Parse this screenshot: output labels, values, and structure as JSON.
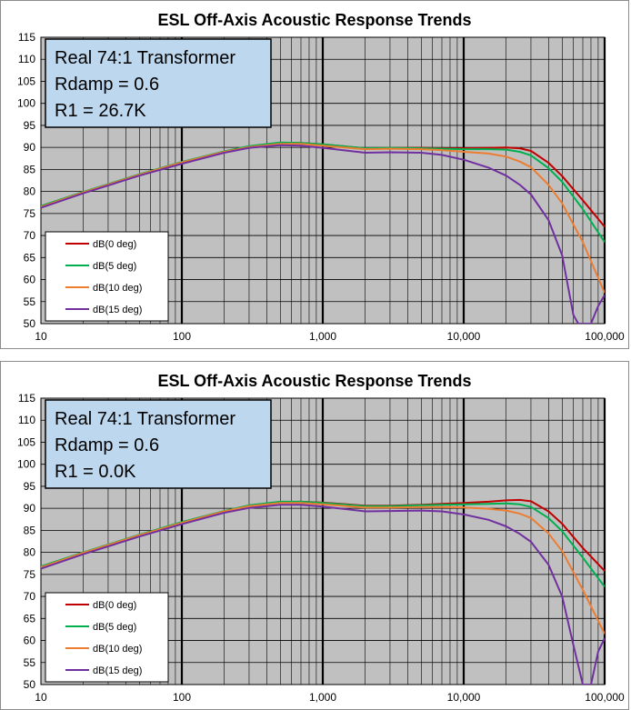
{
  "colors": {
    "plot_bg": "#c0c0c0",
    "annotation_bg": "#bdd7ee",
    "grid": "#000000"
  },
  "chart_data": [
    {
      "type": "line",
      "title": "ESL Off-Axis Acoustic Response Trends",
      "x_scale": "log",
      "xlim": [
        10,
        100000
      ],
      "ylim": [
        50,
        115
      ],
      "x_ticks": [
        10,
        100,
        1000,
        10000,
        100000
      ],
      "x_tick_labels": [
        "10",
        "100",
        "1,000",
        "10,000",
        "100,000"
      ],
      "y_ticks": [
        50,
        55,
        60,
        65,
        70,
        75,
        80,
        85,
        90,
        95,
        100,
        105,
        110,
        115
      ],
      "y_tick_labels": [
        "50",
        "55",
        "60",
        "65",
        "70",
        "75",
        "80",
        "85",
        "90",
        "95",
        "100",
        "105",
        "110",
        "115"
      ],
      "grid": true,
      "legend_position": "bottom-left",
      "annotation": [
        "Real 74:1 Transformer",
        "Rdamp = 0.6",
        "R1 = 26.7K"
      ],
      "series": [
        {
          "name": "dB(0 deg)",
          "color": "#c00000",
          "x": [
            10,
            20,
            50,
            100,
            200,
            300,
            500,
            700,
            1000,
            2000,
            3000,
            5000,
            7000,
            10000,
            15000,
            20000,
            25000,
            30000,
            40000,
            50000,
            70000,
            100000
          ],
          "y": [
            76.6,
            79.8,
            83.8,
            86.6,
            89.0,
            90.2,
            91.0,
            91.0,
            90.7,
            89.8,
            89.9,
            89.9,
            89.8,
            89.8,
            89.9,
            90.0,
            89.8,
            89.2,
            86.5,
            83.5,
            78.0,
            72.0
          ]
        },
        {
          "name": "dB(5 deg)",
          "color": "#00b050",
          "x": [
            10,
            20,
            50,
            100,
            200,
            300,
            500,
            700,
            1000,
            2000,
            3000,
            5000,
            7000,
            10000,
            15000,
            20000,
            25000,
            30000,
            40000,
            50000,
            70000,
            100000
          ],
          "y": [
            76.7,
            79.9,
            83.9,
            86.7,
            89.1,
            90.3,
            91.1,
            91.0,
            90.7,
            89.8,
            89.9,
            89.8,
            89.7,
            89.6,
            89.6,
            89.5,
            89.0,
            88.2,
            85.3,
            82.2,
            76.0,
            68.5
          ]
        },
        {
          "name": "dB(10 deg)",
          "color": "#ed7d31",
          "x": [
            10,
            20,
            50,
            100,
            200,
            300,
            500,
            700,
            1000,
            2000,
            3000,
            5000,
            7000,
            10000,
            15000,
            20000,
            25000,
            30000,
            40000,
            50000,
            70000,
            100000
          ],
          "y": [
            76.5,
            79.8,
            83.8,
            86.6,
            89.0,
            90.1,
            90.8,
            90.8,
            90.4,
            89.6,
            89.7,
            89.6,
            89.4,
            89.0,
            88.6,
            87.9,
            86.8,
            85.5,
            81.5,
            77.3,
            68.5,
            57.0
          ]
        },
        {
          "name": "dB(15 deg)",
          "color": "#7030a0",
          "x": [
            10,
            20,
            50,
            100,
            200,
            300,
            500,
            700,
            1000,
            2000,
            3000,
            5000,
            7000,
            10000,
            15000,
            20000,
            25000,
            30000,
            40000,
            50000,
            60000,
            65000,
            70000,
            80000,
            90000,
            100000
          ],
          "y": [
            76.3,
            79.6,
            83.6,
            86.3,
            88.8,
            89.9,
            90.5,
            90.4,
            89.9,
            88.8,
            88.9,
            88.8,
            88.3,
            87.2,
            85.4,
            83.6,
            81.5,
            79.3,
            73.5,
            65.5,
            52.0,
            50.0,
            50.0,
            50.0,
            54.0,
            56.5
          ]
        }
      ]
    },
    {
      "type": "line",
      "title": "ESL Off-Axis Acoustic Response Trends",
      "x_scale": "log",
      "xlim": [
        10,
        100000
      ],
      "ylim": [
        50,
        115
      ],
      "x_ticks": [
        10,
        100,
        1000,
        10000,
        100000
      ],
      "x_tick_labels": [
        "10",
        "100",
        "1,000",
        "10,000",
        "100,000"
      ],
      "y_ticks": [
        50,
        55,
        60,
        65,
        70,
        75,
        80,
        85,
        90,
        95,
        100,
        105,
        110,
        115
      ],
      "y_tick_labels": [
        "50",
        "55",
        "60",
        "65",
        "70",
        "75",
        "80",
        "85",
        "90",
        "95",
        "100",
        "105",
        "110",
        "115"
      ],
      "grid": true,
      "legend_position": "bottom-left",
      "annotation": [
        "Real 74:1 Transformer",
        "Rdamp = 0.6",
        "R1 = 0.0K"
      ],
      "series": [
        {
          "name": "dB(0 deg)",
          "color": "#c00000",
          "x": [
            10,
            20,
            50,
            100,
            200,
            300,
            500,
            700,
            1000,
            2000,
            3000,
            5000,
            7000,
            10000,
            15000,
            20000,
            25000,
            30000,
            40000,
            50000,
            70000,
            100000
          ],
          "y": [
            76.7,
            79.9,
            83.9,
            86.8,
            89.3,
            90.6,
            91.4,
            91.5,
            91.3,
            90.6,
            90.6,
            90.8,
            91.0,
            91.2,
            91.5,
            91.8,
            91.9,
            91.6,
            89.3,
            86.5,
            81.0,
            75.8
          ]
        },
        {
          "name": "dB(5 deg)",
          "color": "#00b050",
          "x": [
            10,
            20,
            50,
            100,
            200,
            300,
            500,
            700,
            1000,
            2000,
            3000,
            5000,
            7000,
            10000,
            15000,
            20000,
            25000,
            30000,
            40000,
            50000,
            70000,
            100000
          ],
          "y": [
            76.8,
            80.0,
            84.0,
            86.9,
            89.4,
            90.7,
            91.5,
            91.5,
            91.2,
            90.5,
            90.5,
            90.7,
            90.8,
            90.9,
            91.0,
            91.1,
            90.9,
            90.3,
            87.8,
            84.8,
            78.8,
            72.2
          ]
        },
        {
          "name": "dB(10 deg)",
          "color": "#ed7d31",
          "x": [
            10,
            20,
            50,
            100,
            200,
            300,
            500,
            700,
            1000,
            2000,
            3000,
            5000,
            7000,
            10000,
            15000,
            20000,
            25000,
            30000,
            40000,
            50000,
            70000,
            100000
          ],
          "y": [
            76.6,
            79.9,
            83.9,
            86.7,
            89.3,
            90.5,
            91.2,
            91.2,
            90.9,
            90.2,
            90.2,
            90.3,
            90.3,
            90.2,
            89.9,
            89.5,
            88.8,
            87.8,
            84.3,
            80.3,
            71.5,
            61.5
          ]
        },
        {
          "name": "dB(15 deg)",
          "color": "#7030a0",
          "x": [
            10,
            20,
            50,
            100,
            200,
            300,
            500,
            700,
            1000,
            2000,
            3000,
            5000,
            7000,
            10000,
            15000,
            20000,
            25000,
            30000,
            40000,
            50000,
            60000,
            70000,
            75000,
            80000,
            90000,
            100000
          ],
          "y": [
            76.3,
            79.6,
            83.6,
            86.4,
            89.0,
            90.1,
            90.8,
            90.8,
            90.4,
            89.3,
            89.4,
            89.5,
            89.3,
            88.6,
            87.4,
            85.9,
            84.2,
            82.4,
            77.2,
            70.0,
            59.0,
            50.0,
            50.0,
            50.0,
            57.5,
            60.5
          ]
        }
      ]
    }
  ]
}
